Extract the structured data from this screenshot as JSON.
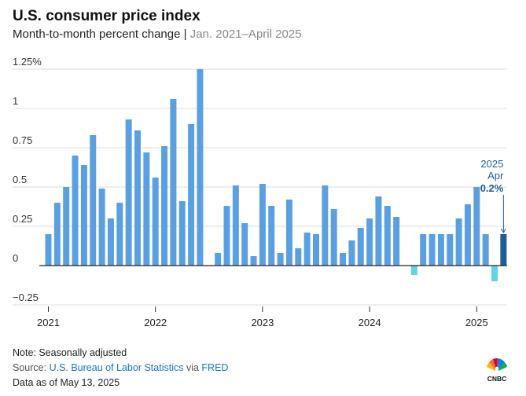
{
  "header": {
    "title": "U.S. consumer price index",
    "subtitle_main": "Month-to-month percent change",
    "subtitle_sep": " | ",
    "subtitle_range": "Jan. 2021–April 2025"
  },
  "annotation": {
    "year": "2025",
    "month": "Apr",
    "value": "0.2%"
  },
  "footer": {
    "note": "Note: Seasonally adjusted",
    "source_prefix": "Source: ",
    "source_bls": "U.S. Bureau of Labor Statistics",
    "source_via": " via ",
    "source_fred": "FRED",
    "data_as_of": "Data as of May 13, 2025"
  },
  "logo": {
    "text": "CNBC",
    "icon": "nbc-peacock-icon"
  },
  "colors": {
    "bar": "#5aa0e0",
    "negative_bar": "#5dd5e6",
    "highlight_bar": "#1d5f98",
    "grid": "#dddddd",
    "zero_line": "#222222"
  },
  "chart_data": {
    "type": "bar",
    "title": "U.S. consumer price index",
    "subtitle": "Month-to-month percent change",
    "xlabel": "",
    "ylabel": "",
    "ylim": [
      -0.25,
      1.25
    ],
    "yticks": [
      1.25,
      1,
      0.75,
      0.5,
      0.25,
      0,
      -0.25
    ],
    "ytick_labels": [
      "1.25%",
      "1",
      "0.75",
      "0.5",
      "0.25",
      "0",
      "−0.25"
    ],
    "xticks": [
      "2021",
      "2022",
      "2023",
      "2024",
      "2025"
    ],
    "grid": true,
    "start": "2021-01",
    "end": "2025-04",
    "values": [
      0.2,
      0.4,
      0.5,
      0.7,
      0.64,
      0.83,
      0.49,
      0.3,
      0.4,
      0.93,
      0.86,
      0.72,
      0.56,
      0.76,
      1.06,
      0.41,
      0.9,
      1.25,
      0.0,
      0.08,
      0.38,
      0.51,
      0.27,
      0.06,
      0.52,
      0.38,
      0.08,
      0.42,
      0.11,
      0.21,
      0.2,
      0.51,
      0.36,
      0.08,
      0.16,
      0.24,
      0.3,
      0.44,
      0.38,
      0.31,
      0.0,
      -0.06,
      0.2,
      0.2,
      0.2,
      0.2,
      0.3,
      0.39,
      0.5,
      0.2,
      -0.1,
      0.2
    ]
  }
}
